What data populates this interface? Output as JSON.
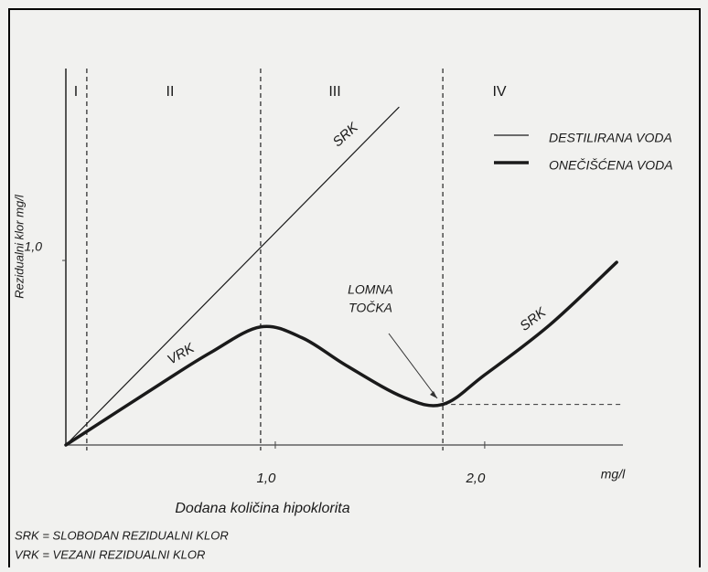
{
  "chart_data": {
    "type": "line",
    "xlabel": "Dodana količina hipoklorita",
    "xunit": "mg/l",
    "ylabel": "Rezidualni klor mg/l",
    "xlim": [
      0,
      2.66
    ],
    "ylim": [
      0,
      2.04
    ],
    "xticks": [
      {
        "value": 1,
        "label": "1,0"
      },
      {
        "value": 2,
        "label": "2,0"
      }
    ],
    "yticks": [
      {
        "value": 1,
        "label": "1,0"
      }
    ],
    "regions": [
      "I",
      "II",
      "III",
      "IV"
    ],
    "boundaries": [
      0.1,
      0.93,
      1.8
    ],
    "breakpoint_level": 0.22,
    "series": [
      {
        "name": "DESTILIRANA VODA",
        "color": "#1a1a1a",
        "x": [
          0,
          1.59
        ],
        "values": [
          0,
          1.83
        ]
      },
      {
        "name": "ONEČIŠĆENA VODA",
        "color": "#1a1a1a",
        "x": [
          0,
          0.45,
          0.69,
          0.93,
          1.13,
          1.34,
          1.61,
          1.8,
          2.0,
          2.31,
          2.63
        ],
        "values": [
          0,
          0.33,
          0.5,
          0.64,
          0.58,
          0.43,
          0.26,
          0.22,
          0.38,
          0.65,
          0.99
        ]
      }
    ],
    "annotations": [
      "SRK",
      "VRK",
      "LOMNA",
      "TOČKA",
      "SRK"
    ],
    "notes": [
      "SRK = SLOBODAN REZIDUALNI KLOR",
      "VRK = VEZANI REZIDUALNI KLOR"
    ]
  }
}
